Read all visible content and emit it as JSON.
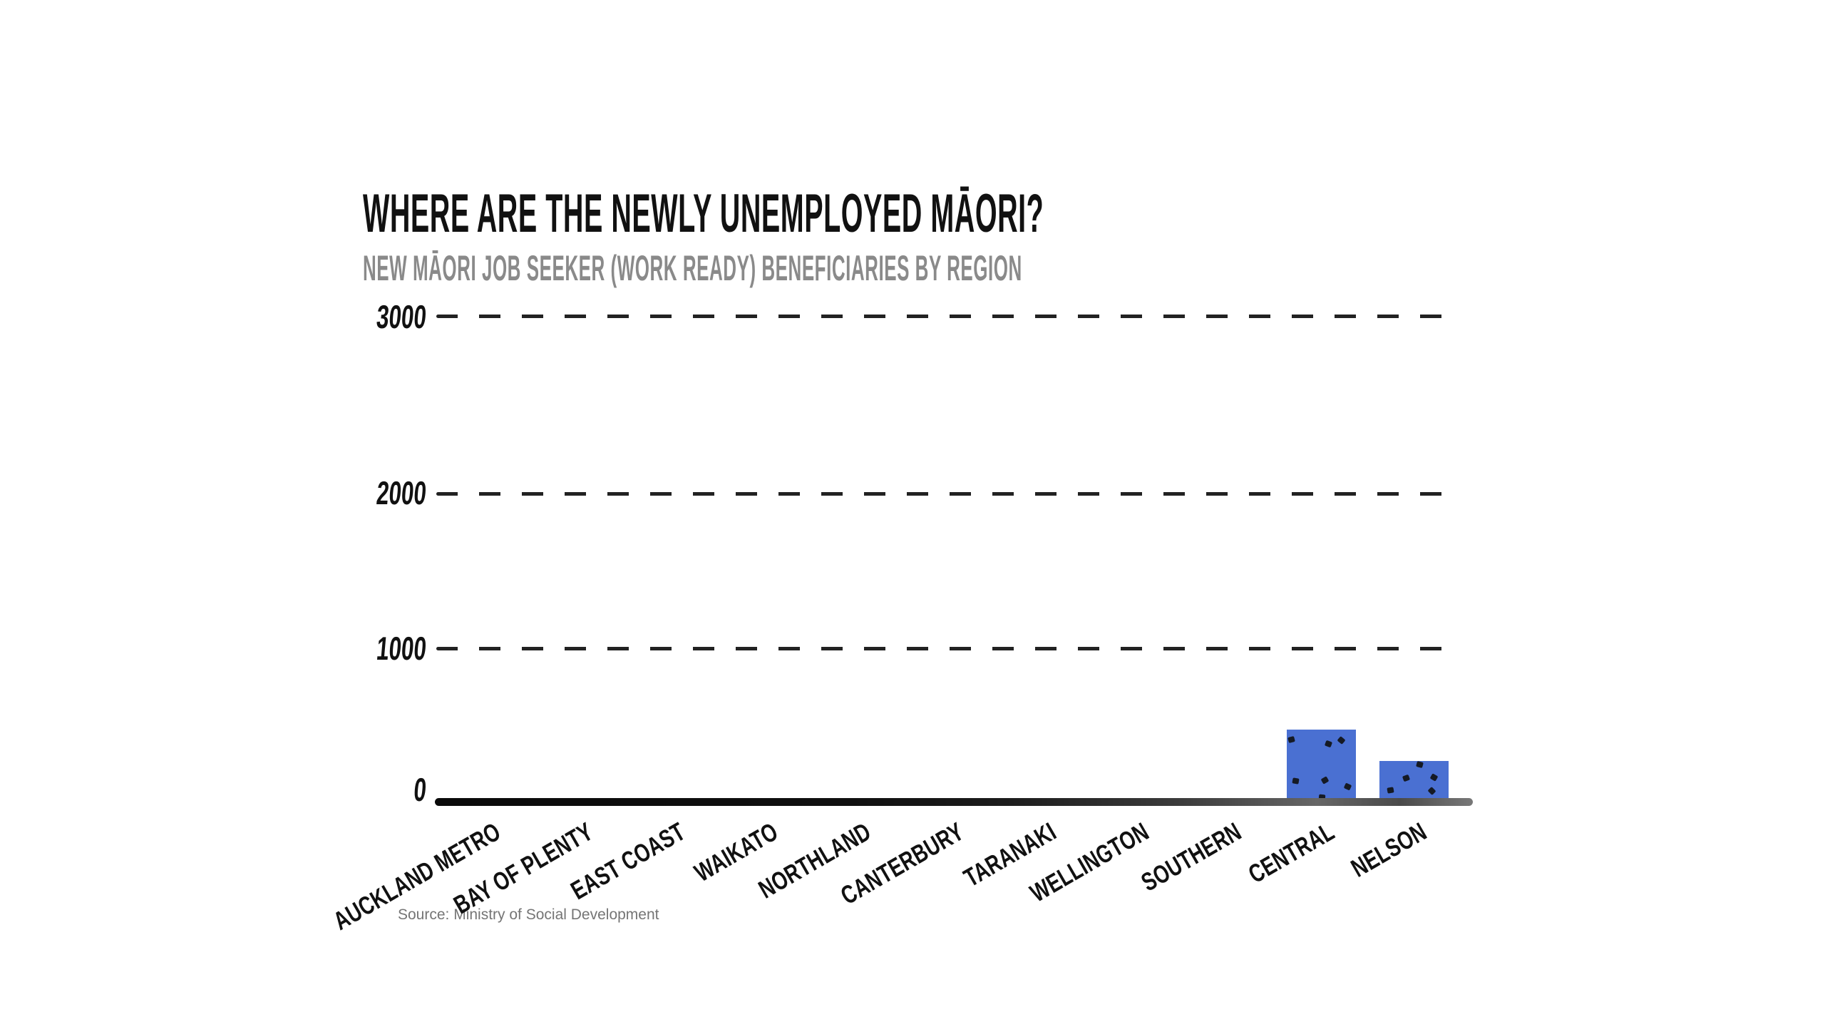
{
  "chart_data": {
    "type": "bar",
    "title": "WHERE ARE THE NEWLY UNEMPLOYED MĀORI?",
    "subtitle": "NEW MĀORI JOB SEEKER (WORK READY) BENEFICIARIES BY REGION",
    "source": "Source: Ministry of Social Development",
    "categories": [
      "AUCKLAND METRO",
      "BAY OF PLENTY",
      "EAST COAST",
      "WAIKATO",
      "NORTHLAND",
      "CANTERBURY",
      "TARANAKI",
      "WELLINGTON",
      "SOUTHERN",
      "CENTRAL",
      "NELSON"
    ],
    "values": [
      0,
      0,
      0,
      0,
      0,
      0,
      0,
      0,
      0,
      470,
      270
    ],
    "yticks": [
      0,
      1000,
      2000,
      3000
    ],
    "ylim": [
      0,
      3200
    ],
    "xlabel": "",
    "ylabel": "",
    "grid": "horizontal dashed gridlines at each ytick, no vertical grid",
    "legend": "none",
    "style": "hand-drawn marker style, bars speckled",
    "colors": {
      "bar": "#4a70d2",
      "bar_speckle": "#151a24",
      "axis_line": "#111111",
      "gridline": "#222222",
      "title_text": "#111111",
      "subtitle_text": "#8a8a8a",
      "tick_text": "#111111",
      "source_text": "#757575",
      "background": "#ffffff"
    }
  }
}
